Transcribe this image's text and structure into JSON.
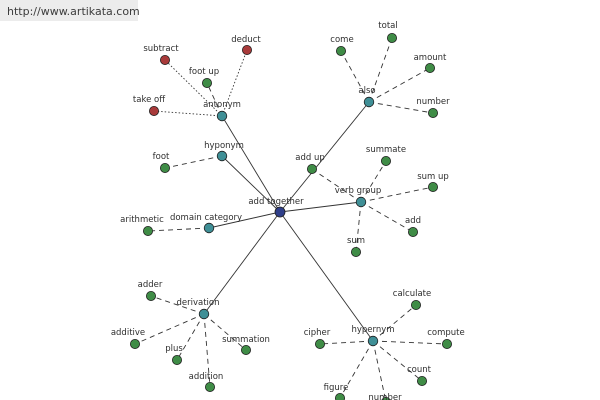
{
  "site": {
    "url": "http://www.artikata.com"
  },
  "colors": {
    "center": "#2f3f8a",
    "relation": "#3f8f96",
    "word": "#3f8c46",
    "antonym_word": "#a83a3a",
    "edge": "#333333"
  },
  "graph": {
    "center": {
      "id": "add-together",
      "label": "add together"
    },
    "relations": [
      {
        "id": "antonym",
        "label": "antonym",
        "words": [
          {
            "label": "subtract",
            "kind": "antonym_word"
          },
          {
            "label": "deduct",
            "kind": "antonym_word"
          },
          {
            "label": "take off",
            "kind": "antonym_word"
          },
          {
            "label": "foot up",
            "kind": "word"
          }
        ]
      },
      {
        "id": "hyponym",
        "label": "hyponym",
        "words": [
          {
            "label": "foot",
            "kind": "word"
          }
        ]
      },
      {
        "id": "domain-category",
        "label": "domain category",
        "words": [
          {
            "label": "arithmetic",
            "kind": "word"
          }
        ]
      },
      {
        "id": "also",
        "label": "also",
        "words": [
          {
            "label": "come",
            "kind": "word"
          },
          {
            "label": "total",
            "kind": "word"
          },
          {
            "label": "amount",
            "kind": "word"
          },
          {
            "label": "number",
            "kind": "word"
          }
        ]
      },
      {
        "id": "verb-group",
        "label": "verb group",
        "words": [
          {
            "label": "add up",
            "kind": "word"
          },
          {
            "label": "summate",
            "kind": "word"
          },
          {
            "label": "sum up",
            "kind": "word"
          },
          {
            "label": "add",
            "kind": "word"
          },
          {
            "label": "sum",
            "kind": "word"
          }
        ]
      },
      {
        "id": "derivation",
        "label": "derivation",
        "words": [
          {
            "label": "adder",
            "kind": "word"
          },
          {
            "label": "additive",
            "kind": "word"
          },
          {
            "label": "plus",
            "kind": "word"
          },
          {
            "label": "addition",
            "kind": "word"
          },
          {
            "label": "summation",
            "kind": "word"
          }
        ]
      },
      {
        "id": "hypernym",
        "label": "hypernym",
        "words": [
          {
            "label": "calculate",
            "kind": "word"
          },
          {
            "label": "compute",
            "kind": "word"
          },
          {
            "label": "cipher",
            "kind": "word"
          },
          {
            "label": "count",
            "kind": "word"
          },
          {
            "label": "figure",
            "kind": "word"
          },
          {
            "label": "number",
            "kind": "word"
          }
        ]
      }
    ]
  }
}
